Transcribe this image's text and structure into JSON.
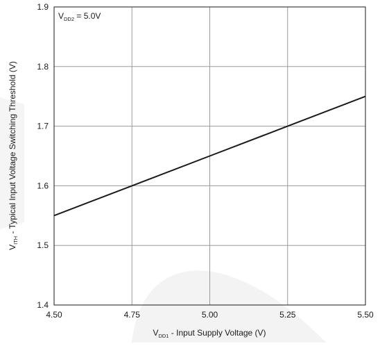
{
  "chart_data": {
    "type": "line",
    "title": "",
    "xlabel": {
      "main": "V",
      "sub": "DD1",
      "rest": " - Input Supply Voltage (V)"
    },
    "ylabel": {
      "main": "V",
      "sub": "ITH",
      "rest": " - Typical Input Voltage Switching Threshold (V)"
    },
    "annotation": {
      "main": "V",
      "sub": "DD2",
      "rest": " = 5.0V"
    },
    "xlim": [
      4.5,
      5.5
    ],
    "ylim": [
      1.4,
      1.9
    ],
    "xticks": [
      4.5,
      4.75,
      5.0,
      5.25,
      5.5
    ],
    "xtick_labels": [
      "4.50",
      "4.75",
      "5.00",
      "5.25",
      "5.50"
    ],
    "yticks": [
      1.4,
      1.5,
      1.6,
      1.7,
      1.8,
      1.9
    ],
    "ytick_labels": [
      "1.4",
      "1.5",
      "1.6",
      "1.7",
      "1.8",
      "1.9"
    ],
    "grid": true,
    "series": [
      {
        "x": [
          4.5,
          4.75,
          5.0,
          5.25,
          5.5
        ],
        "y": [
          1.55,
          1.6,
          1.65,
          1.7,
          1.75
        ],
        "color": "#1a1a1a"
      }
    ],
    "colors": {
      "grid": "#9a9a9a",
      "axes": "#1a1a1a",
      "line": "#1a1a1a",
      "watermark": "#f2f2f2"
    }
  }
}
